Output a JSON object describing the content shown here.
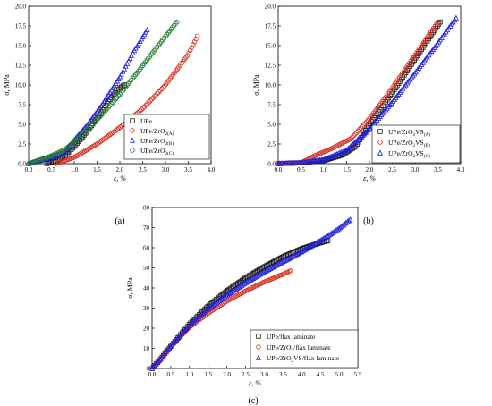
{
  "chart_data": [
    {
      "type": "scatter",
      "panel_label": "(a)",
      "xlabel": "ε, %",
      "ylabel": "σ, MPa",
      "xlim": [
        0,
        4.0
      ],
      "ylim": [
        0,
        20.0
      ],
      "xticks": [
        "0.0",
        "0.5",
        "1.0",
        "1.5",
        "2.0",
        "2.5",
        "3.0",
        "3.5",
        "4.0"
      ],
      "yticks": [
        "0.0",
        "2.5",
        "5.0",
        "7.5",
        "10.0",
        "12.5",
        "15.0",
        "17.5",
        "20.0"
      ],
      "legend_position": "bottom-right",
      "series": [
        {
          "name": "UPe",
          "sub": "",
          "marker": "square",
          "color": "#1a1a1a",
          "x": [
            0.4,
            0.6,
            0.8,
            1.0,
            1.2,
            1.4,
            1.6,
            1.8,
            2.0,
            2.1
          ],
          "y": [
            0.0,
            0.3,
            1.0,
            2.2,
            3.5,
            5.0,
            6.6,
            8.3,
            9.6,
            10.0
          ]
        },
        {
          "name": "UPe/ZrO",
          "sub": "2(A)",
          "marker": "circle",
          "color": "#d42a1c",
          "x": [
            0.6,
            1.0,
            1.5,
            2.0,
            2.5,
            3.0,
            3.5,
            3.7
          ],
          "y": [
            0.0,
            0.8,
            2.5,
            4.6,
            7.0,
            10.0,
            13.9,
            16.2
          ]
        },
        {
          "name": "UPe/ZrO",
          "sub": "2(B)",
          "marker": "triangle",
          "color": "#2020d8",
          "x": [
            0.0,
            0.5,
            0.8,
            1.0,
            1.3,
            1.6,
            2.0,
            2.3,
            2.6
          ],
          "y": [
            0.0,
            0.8,
            1.5,
            3.0,
            5.0,
            7.4,
            11.0,
            14.2,
            17.0
          ]
        },
        {
          "name": "UPe/ZrO",
          "sub": "2(C)",
          "marker": "circle",
          "color": "#1f7a2a",
          "x": [
            0.0,
            0.5,
            0.8,
            1.2,
            1.6,
            2.0,
            2.4,
            2.8,
            3.25
          ],
          "y": [
            0.0,
            1.0,
            1.8,
            3.8,
            6.2,
            8.8,
            11.7,
            14.7,
            18.0
          ]
        }
      ]
    },
    {
      "type": "scatter",
      "panel_label": "(b)",
      "xlabel": "ε, %",
      "ylabel": "σ, MPa",
      "xlim": [
        0,
        4.0
      ],
      "ylim": [
        0,
        20.0
      ],
      "xticks": [
        "0.0",
        "0.5",
        "1.0",
        "1.5",
        "2.0",
        "2.5",
        "3.0",
        "3.5",
        "4.0"
      ],
      "yticks": [
        "0.0",
        "2.5",
        "5.0",
        "7.5",
        "10.0",
        "12.5",
        "15.0",
        "17.5",
        "20.0"
      ],
      "legend_position": "bottom-right",
      "series": [
        {
          "name": "UPe/ZrO",
          "sub": "2",
          "suffix": "VS",
          "sub2": "(A)",
          "marker": "square",
          "color": "#1a1a1a",
          "x": [
            0.0,
            0.5,
            1.0,
            1.4,
            1.7,
            2.0,
            2.5,
            3.0,
            3.55
          ],
          "y": [
            0.0,
            0.1,
            0.4,
            1.1,
            2.2,
            5.0,
            9.0,
            13.3,
            18.0
          ]
        },
        {
          "name": "UPe/ZrO",
          "sub": "2",
          "suffix": "VS",
          "sub2": "(B)",
          "marker": "circle",
          "color": "#d42a1c",
          "x": [
            0.0,
            0.5,
            0.8,
            1.2,
            1.6,
            2.0,
            2.5,
            3.0,
            3.5
          ],
          "y": [
            0.0,
            0.1,
            1.0,
            2.0,
            3.2,
            5.7,
            9.6,
            13.8,
            18.0
          ]
        },
        {
          "name": "UPe/ZrO",
          "sub": "2",
          "suffix": "VS",
          "sub2": "(C)",
          "marker": "triangle",
          "color": "#2020d8",
          "x": [
            0.0,
            0.5,
            1.0,
            1.5,
            2.0,
            2.5,
            3.0,
            3.5,
            3.9
          ],
          "y": [
            0.0,
            0.1,
            0.5,
            1.7,
            4.4,
            7.8,
            11.5,
            15.3,
            18.5
          ]
        }
      ]
    },
    {
      "type": "scatter",
      "panel_label": "(c)",
      "xlabel": "ε, %",
      "ylabel": "σ, MPa",
      "xlim": [
        0,
        5.5
      ],
      "ylim": [
        0,
        80
      ],
      "xticks": [
        "0.0",
        "0.5",
        "1.0",
        "1.5",
        "2.0",
        "2.5",
        "3.0",
        "3.5",
        "4.0",
        "4.5",
        "5.0",
        "5.5"
      ],
      "yticks": [
        "0",
        "10",
        "20",
        "30",
        "40",
        "50",
        "60",
        "70",
        "80"
      ],
      "legend_position": "bottom-right",
      "series": [
        {
          "name": "UPe/flax laminate",
          "sub": "",
          "marker": "square",
          "color": "#1a1a1a",
          "x": [
            0.0,
            0.2,
            0.5,
            1.0,
            1.5,
            2.0,
            2.5,
            3.0,
            3.5,
            4.0,
            4.5,
            4.7
          ],
          "y": [
            0.0,
            4.0,
            11.0,
            22.0,
            31.0,
            38.5,
            45.0,
            50.5,
            55.5,
            59.5,
            62.5,
            63.5
          ]
        },
        {
          "name": "UPe/ZrO",
          "sub": "2",
          "suffix": "/flax laminate",
          "marker": "circle",
          "color": "#d42a1c",
          "x": [
            0.0,
            0.2,
            0.5,
            1.0,
            1.5,
            2.0,
            2.5,
            3.0,
            3.5,
            3.7
          ],
          "y": [
            0.0,
            4.0,
            11.0,
            20.5,
            27.5,
            33.5,
            38.5,
            43.0,
            46.8,
            48.5
          ]
        },
        {
          "name": "UPe/ZrO",
          "sub": "2",
          "suffix": "VS/flax laminate",
          "marker": "triangle",
          "color": "#2020d8",
          "x": [
            0.0,
            0.2,
            0.5,
            1.0,
            1.5,
            2.0,
            2.5,
            3.0,
            3.5,
            4.0,
            4.5,
            5.0,
            5.3
          ],
          "y": [
            0.0,
            4.0,
            11.0,
            21.5,
            29.5,
            36.5,
            42.5,
            48.0,
            53.0,
            58.0,
            63.5,
            69.5,
            74.0
          ]
        }
      ]
    }
  ]
}
